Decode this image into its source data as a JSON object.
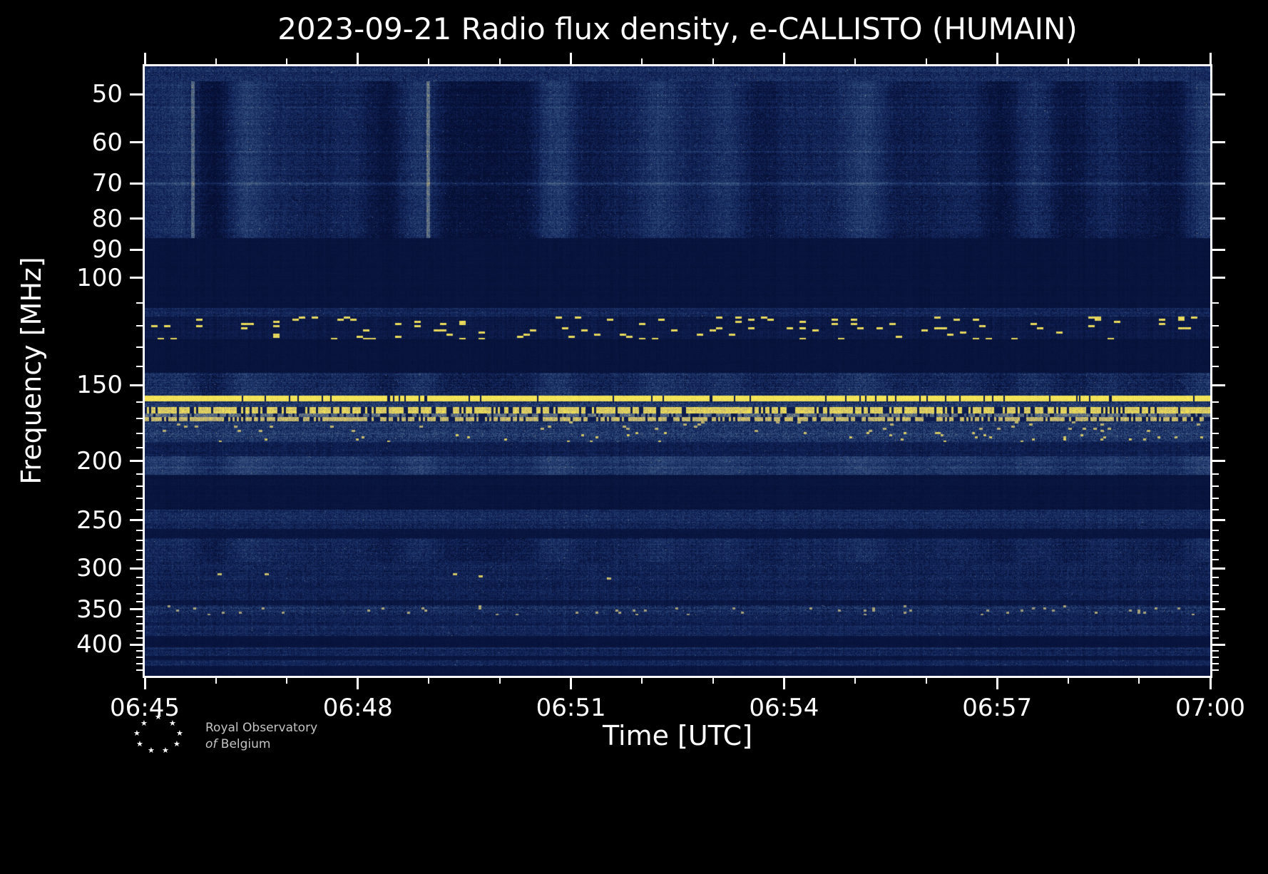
{
  "title": "2023-09-21 Radio flux density, e-CALLISTO (HUMAIN)",
  "axes": {
    "xlabel": "Time [UTC]",
    "ylabel": "Frequency [MHz]"
  },
  "footer": {
    "logo_line1": "Royal Observatory",
    "logo_line2_italic": "of",
    "logo_line2": "Belgium",
    "star_char": "★"
  },
  "chart_data": {
    "type": "heatmap",
    "title": "2023-09-21 Radio flux density, e-CALLISTO (HUMAIN)",
    "date": "2023-09-21",
    "instrument": "e-CALLISTO",
    "station": "HUMAIN",
    "xlabel": "Time [UTC]",
    "ylabel": "Frequency [MHz]",
    "x_start": "06:45",
    "x_end": "07:00",
    "x_total_min": 15,
    "x_ticks": [
      {
        "label": "06:45",
        "t": 0
      },
      {
        "label": "06:48",
        "t": 3
      },
      {
        "label": "06:51",
        "t": 6
      },
      {
        "label": "06:54",
        "t": 9
      },
      {
        "label": "06:57",
        "t": 12
      },
      {
        "label": "07:00",
        "t": 15
      }
    ],
    "x_minor_step_min": 1,
    "y_scale": "log",
    "y_direction": "increasing-downward",
    "y_min": 45,
    "y_max": 450,
    "y_ticks": [
      50,
      60,
      70,
      80,
      90,
      100,
      150,
      200,
      250,
      300,
      350,
      400
    ],
    "y_minor_ticks": [
      110,
      120,
      130,
      140,
      160,
      170,
      180,
      190,
      210,
      220,
      230,
      240,
      260,
      270,
      280,
      290,
      310,
      320,
      330,
      340,
      360,
      370,
      380,
      390,
      410,
      420,
      430,
      440
    ],
    "background": "#000000",
    "colormap": [
      [
        0.0,
        "#060f33"
      ],
      [
        0.18,
        "#12255c"
      ],
      [
        0.4,
        "#33517f"
      ],
      [
        0.6,
        "#6f7a85"
      ],
      [
        0.78,
        "#b3a878"
      ],
      [
        0.9,
        "#e4d45c"
      ],
      [
        1.0,
        "#ffef55"
      ]
    ],
    "bands": [
      {
        "f0": 45,
        "f1": 47.5,
        "base": 0.2,
        "noise": 0.13,
        "rowvar": 0.05
      },
      {
        "f0": 47.5,
        "f1": 86,
        "base": 0.15,
        "noise": 0.12,
        "rowvar": 0.04,
        "vstreak": 0.14
      },
      {
        "f0": 86,
        "f1": 112,
        "base": 0.045,
        "noise": 0.02
      },
      {
        "f0": 112,
        "f1": 115.5,
        "base": 0.17,
        "noise": 0.11,
        "rowvar": 0.05
      },
      {
        "f0": 115.5,
        "f1": 126,
        "base": 0.09,
        "noise": 0.06,
        "speckle": {
          "prob": 0.06,
          "v": 0.92,
          "cx": 9,
          "cy": 3
        }
      },
      {
        "f0": 126,
        "f1": 143,
        "base": 0.045,
        "noise": 0.02
      },
      {
        "f0": 143,
        "f1": 156,
        "base": 0.19,
        "noise": 0.14,
        "rowvar": 0.07,
        "vstreak": 0.08
      },
      {
        "f0": 156,
        "f1": 159.5,
        "base": 0.96,
        "noise": 0.04,
        "gaps": {
          "prob": 0.05,
          "cell": 2,
          "dim": 0.1
        }
      },
      {
        "f0": 159.5,
        "f1": 163,
        "base": 0.26,
        "noise": 0.16,
        "rowvar": 0.06
      },
      {
        "f0": 163,
        "f1": 167,
        "base": 0.88,
        "noise": 0.08,
        "gaps": {
          "prob": 0.28,
          "cell": 3,
          "dim": 0.12
        }
      },
      {
        "f0": 167,
        "f1": 169,
        "base": 0.5,
        "noise": 0.18,
        "gaps": {
          "prob": 0.28,
          "cell": 3,
          "dim": 0.12
        }
      },
      {
        "f0": 169,
        "f1": 172,
        "base": 0.82,
        "noise": 0.1,
        "gaps": {
          "prob": 0.32,
          "cell": 3,
          "dim": 0.12
        }
      },
      {
        "f0": 172,
        "f1": 179,
        "base": 0.24,
        "noise": 0.16,
        "rowvar": 0.06,
        "speckle": {
          "prob": 0.03,
          "v": 0.8,
          "cx": 5,
          "cy": 3
        }
      },
      {
        "f0": 179,
        "f1": 186,
        "base": 0.27,
        "noise": 0.17,
        "rowvar": 0.06,
        "speckle": {
          "prob": 0.02,
          "v": 0.85,
          "cx": 4,
          "cy": 3
        }
      },
      {
        "f0": 186,
        "f1": 196,
        "base": 0.13,
        "noise": 0.09
      },
      {
        "f0": 196,
        "f1": 210,
        "base": 0.26,
        "noise": 0.12,
        "rowvar": 0.05,
        "vstreak": 0.06
      },
      {
        "f0": 210,
        "f1": 240,
        "base": 0.05,
        "noise": 0.025
      },
      {
        "f0": 240,
        "f1": 258,
        "base": 0.19,
        "noise": 0.12,
        "rowvar": 0.05
      },
      {
        "f0": 258,
        "f1": 267,
        "base": 0.06,
        "noise": 0.03
      },
      {
        "f0": 267,
        "f1": 292,
        "base": 0.16,
        "noise": 0.12,
        "rowvar": 0.04,
        "vstreak": 0.06
      },
      {
        "f0": 292,
        "f1": 312,
        "base": 0.15,
        "noise": 0.12,
        "rowvar": 0.04,
        "speckle": {
          "prob": 0.005,
          "v": 0.85,
          "cx": 6,
          "cy": 3
        }
      },
      {
        "f0": 312,
        "f1": 338,
        "base": 0.15,
        "noise": 0.11,
        "rowvar": 0.04
      },
      {
        "f0": 338,
        "f1": 344,
        "base": 0.08,
        "noise": 0.05
      },
      {
        "f0": 344,
        "f1": 357,
        "base": 0.21,
        "noise": 0.15,
        "rowvar": 0.06,
        "speckle": {
          "prob": 0.025,
          "v": 0.75,
          "cx": 4,
          "cy": 3
        }
      },
      {
        "f0": 357,
        "f1": 372,
        "base": 0.15,
        "noise": 0.1,
        "rowvar": 0.04
      },
      {
        "f0": 372,
        "f1": 386,
        "base": 0.17,
        "noise": 0.11,
        "rowvar": 0.04
      },
      {
        "f0": 386,
        "f1": 403,
        "base": 0.05,
        "noise": 0.025
      },
      {
        "f0": 403,
        "f1": 417,
        "base": 0.17,
        "noise": 0.11,
        "rowvar": 0.05
      },
      {
        "f0": 417,
        "f1": 424,
        "base": 0.06,
        "noise": 0.03
      },
      {
        "f0": 424,
        "f1": 433,
        "base": 0.16,
        "noise": 0.11,
        "rowvar": 0.05
      },
      {
        "f0": 433,
        "f1": 450,
        "base": 0.05,
        "noise": 0.025
      }
    ],
    "h_lines": [
      {
        "f": 70,
        "boost": 0.18,
        "half": 2
      },
      {
        "f": 62,
        "boost": 0.09,
        "half": 1
      },
      {
        "f": 52.5,
        "boost": 0.06,
        "half": 1
      },
      {
        "f": 205,
        "boost": 0.05,
        "half": 2
      }
    ]
  }
}
